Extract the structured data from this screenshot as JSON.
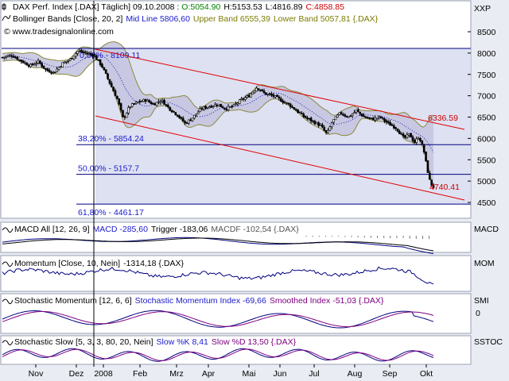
{
  "header": {
    "line1_prefix": "DAX Perf. Index [.DAX] Täglich] 09.10.2008 : ",
    "open": "O:5054.90",
    "high": "H:5153.53",
    "low": "L:4816.89",
    "close": "C:4858.85",
    "bollinger_prefix": "Bollinger Bands [Close, 20, 2]",
    "bollinger_mid": "Mid Line 5806,60",
    "bollinger_upper": "Upper Band 6555,39",
    "bollinger_lower": "Lower Band 5057,81 {.DAX}",
    "copyright": "© www.tradesignalonline.com",
    "symbol_right": "XXP"
  },
  "colors": {
    "background": "#e9ecf3",
    "panel_bg": "#ffffff",
    "candle": "#000000",
    "band_fill": "#c8c8e4",
    "band_line": "#8a8a3a",
    "mid_line": "#3030c0",
    "channel": "#e00000",
    "fib_line": "#000080",
    "fib_fill": "#d8dcf0",
    "blue_text": "#1a1acc",
    "olive_text": "#7a7a00",
    "red_text": "#cc0000",
    "green_text": "#008000"
  },
  "chart_data": [
    {
      "type": "candlestick",
      "title": "DAX Perf. Index [.DAX] Täglich",
      "x_ticks": [
        "Nov",
        "Dez",
        "2008",
        "Feb",
        "Mrz",
        "Apr",
        "Mai",
        "Jun",
        "Jul",
        "Aug",
        "Sep",
        "Okt"
      ],
      "y_ticks": [
        "8500",
        "8000",
        "7500",
        "7000",
        "6500",
        "6000",
        "5500",
        "5000",
        "4500"
      ],
      "ylim": [
        4250,
        8750
      ],
      "close_path": [
        {
          "x": 0,
          "y": 7900
        },
        {
          "x": 12,
          "y": 7950
        },
        {
          "x": 25,
          "y": 7800
        },
        {
          "x": 35,
          "y": 7700
        },
        {
          "x": 45,
          "y": 7800
        },
        {
          "x": 55,
          "y": 7600
        },
        {
          "x": 65,
          "y": 7550
        },
        {
          "x": 75,
          "y": 7750
        },
        {
          "x": 85,
          "y": 7850
        },
        {
          "x": 95,
          "y": 8050
        },
        {
          "x": 105,
          "y": 8000
        },
        {
          "x": 115,
          "y": 7950
        },
        {
          "x": 125,
          "y": 7700
        },
        {
          "x": 135,
          "y": 7300
        },
        {
          "x": 145,
          "y": 6900
        },
        {
          "x": 152,
          "y": 6450
        },
        {
          "x": 160,
          "y": 6750
        },
        {
          "x": 170,
          "y": 6850
        },
        {
          "x": 180,
          "y": 6900
        },
        {
          "x": 190,
          "y": 6800
        },
        {
          "x": 200,
          "y": 6900
        },
        {
          "x": 210,
          "y": 6700
        },
        {
          "x": 220,
          "y": 6550
        },
        {
          "x": 230,
          "y": 6350
        },
        {
          "x": 240,
          "y": 6500
        },
        {
          "x": 250,
          "y": 6700
        },
        {
          "x": 260,
          "y": 6750
        },
        {
          "x": 270,
          "y": 6800
        },
        {
          "x": 280,
          "y": 6700
        },
        {
          "x": 290,
          "y": 6750
        },
        {
          "x": 300,
          "y": 6900
        },
        {
          "x": 310,
          "y": 7000
        },
        {
          "x": 320,
          "y": 7200
        },
        {
          "x": 330,
          "y": 7050
        },
        {
          "x": 340,
          "y": 7000
        },
        {
          "x": 350,
          "y": 6900
        },
        {
          "x": 360,
          "y": 6800
        },
        {
          "x": 370,
          "y": 6650
        },
        {
          "x": 380,
          "y": 6500
        },
        {
          "x": 390,
          "y": 6400
        },
        {
          "x": 400,
          "y": 6300
        },
        {
          "x": 408,
          "y": 6100
        },
        {
          "x": 415,
          "y": 6400
        },
        {
          "x": 425,
          "y": 6600
        },
        {
          "x": 435,
          "y": 6500
        },
        {
          "x": 445,
          "y": 6650
        },
        {
          "x": 455,
          "y": 6500
        },
        {
          "x": 465,
          "y": 6450
        },
        {
          "x": 475,
          "y": 6500
        },
        {
          "x": 485,
          "y": 6350
        },
        {
          "x": 495,
          "y": 6250
        },
        {
          "x": 505,
          "y": 6000
        },
        {
          "x": 512,
          "y": 6100
        },
        {
          "x": 518,
          "y": 5900
        },
        {
          "x": 524,
          "y": 6050
        },
        {
          "x": 530,
          "y": 5700
        },
        {
          "x": 534,
          "y": 5300
        },
        {
          "x": 538,
          "y": 4950
        },
        {
          "x": 542,
          "y": 4860
        }
      ],
      "bollinger": {
        "mid": 5806.6,
        "upper": 6555.39,
        "lower": 5057.81
      },
      "channel": {
        "upper_label": "6336.59",
        "lower_label": "4740.41"
      },
      "fibonacci": [
        {
          "label": "0,00% - 8109.11",
          "value": 8109.11
        },
        {
          "label": "38,20% - 5854.24",
          "value": 5854.24
        },
        {
          "label": "50,00% - 5157.7",
          "value": 5157.7
        },
        {
          "label": "61,80% - 4461.17",
          "value": 4461.17
        }
      ]
    },
    {
      "type": "line",
      "title": "MACD All [12, 26, 9]",
      "values": {
        "macd": "MACD -285,60",
        "trigger": "Trigger -183,06",
        "macdf": "MACDF -102,54 {.DAX}"
      },
      "y_tick": "MACD"
    },
    {
      "type": "line",
      "title": "Momentum [Close, 10, Nein]",
      "values": {
        "value": "-1314,18 {.DAX}"
      },
      "y_tick": "MOM"
    },
    {
      "type": "line",
      "title": "Stochastic Momentum [12, 6, 6]",
      "values": {
        "smi": "Stochastic Momentum Index -69,66",
        "smoothed": "Smoothed Index -51,03 {.DAX}"
      },
      "y_ticks": [
        "SMI",
        "0"
      ]
    },
    {
      "type": "line",
      "title": "Stochastic Slow [5, 3, 3, 80, 20, Nein]",
      "values": {
        "k": "Slow %K 8,41",
        "d": "Slow %D 13,50 {.DAX}"
      },
      "y_tick": "SSTOC"
    }
  ]
}
